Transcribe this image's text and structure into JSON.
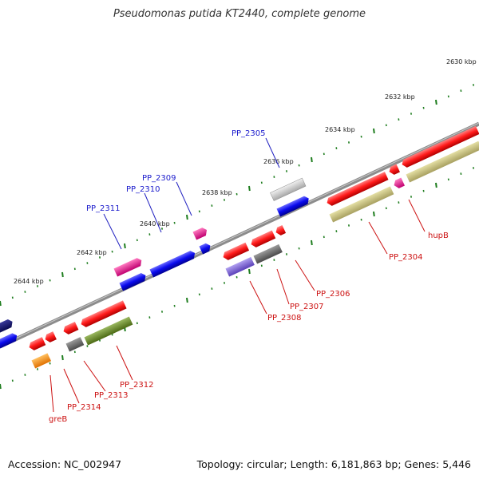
{
  "title": "Pseudomonas putida KT2440, complete genome",
  "footer": {
    "accession": "Accession: NC_002947",
    "summary": "Topology: circular; Length: 6,181,863 bp; Genes: 5,446"
  },
  "colors": {
    "backbone": "#8c8c8c",
    "tick": "#1e7d1e",
    "label_forward": "#1a1acc",
    "label_reverse": "#cc1111"
  },
  "ruler_labels": [
    "2630 kbp",
    "2632 kbp",
    "2634 kbp",
    "2636 kbp",
    "2638 kbp",
    "2640 kbp",
    "2642 kbp",
    "2644 kbp"
  ],
  "forward_labels": [
    "PP_2305",
    "PP_2309",
    "PP_2310",
    "PP_2311"
  ],
  "reverse_labels": [
    "hupB",
    "PP_2304",
    "PP_2306",
    "PP_2307",
    "PP_2308",
    "PP_2312",
    "PP_2313",
    "PP_2314",
    "greB"
  ]
}
